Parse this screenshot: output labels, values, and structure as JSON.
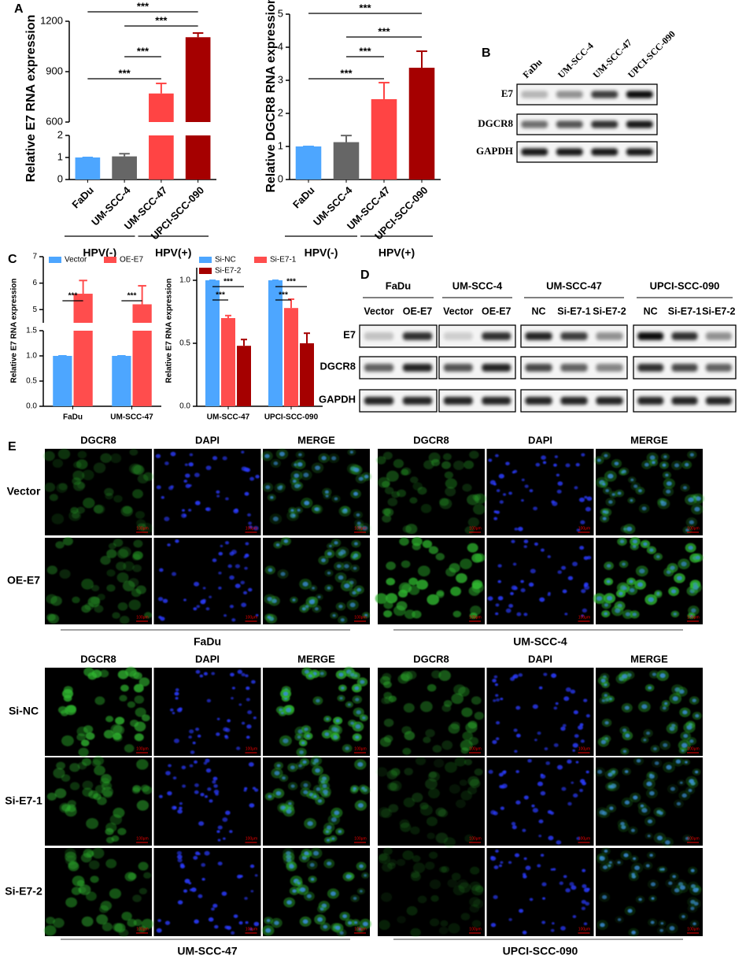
{
  "panel_labels": [
    "A",
    "B",
    "C",
    "D",
    "E"
  ],
  "chart_data": [
    {
      "type": "bar",
      "ylabel": "Relative E7 RNA expression",
      "categories": [
        "FaDu",
        "UM-SCC-4",
        "UM-SCC-47",
        "UPCI-SCC-090"
      ],
      "values": [
        1,
        1.05,
        770,
        1105
      ],
      "errors": [
        0,
        0.12,
        60,
        25
      ],
      "colors": [
        "#4da6ff",
        "#666666",
        "#ff4444",
        "#a50000"
      ],
      "segments": [
        {
          "ylim": [
            0,
            2
          ],
          "yticks": [
            0,
            1,
            2
          ]
        },
        {
          "ylim": [
            600,
            1200
          ],
          "yticks": [
            600,
            900,
            1200
          ]
        }
      ],
      "significance": [
        {
          "label": "***",
          "between": [
            0,
            2
          ]
        },
        {
          "label": "***",
          "between": [
            1,
            2
          ]
        },
        {
          "label": "***",
          "between": [
            1,
            3
          ]
        },
        {
          "label": "***",
          "between": [
            0,
            3
          ]
        }
      ],
      "groups": [
        {
          "label": "HPV(-)",
          "span": [
            0,
            1
          ]
        },
        {
          "label": "HPV(+)",
          "span": [
            2,
            3
          ]
        }
      ]
    },
    {
      "type": "bar",
      "ylabel": "Relative DGCR8 RNA expression",
      "categories": [
        "FaDu",
        "UM-SCC-4",
        "UM-SCC-47",
        "UPCI-SCC-090"
      ],
      "values": [
        1,
        1.13,
        2.43,
        3.38
      ],
      "errors": [
        0,
        0.2,
        0.5,
        0.5
      ],
      "colors": [
        "#4da6ff",
        "#666666",
        "#ff4444",
        "#a50000"
      ],
      "ylim": [
        0,
        5
      ],
      "yticks": [
        0,
        1,
        2,
        3,
        4,
        5
      ],
      "significance": [
        {
          "label": "***",
          "between": [
            0,
            2
          ]
        },
        {
          "label": "***",
          "between": [
            1,
            2
          ]
        },
        {
          "label": "***",
          "between": [
            1,
            3
          ]
        },
        {
          "label": "***",
          "between": [
            0,
            3
          ]
        }
      ],
      "groups": [
        {
          "label": "HPV(-)",
          "span": [
            0,
            1
          ]
        },
        {
          "label": "HPV(+)",
          "span": [
            2,
            3
          ]
        }
      ]
    },
    {
      "type": "bar",
      "ylabel": "Relative E7 RNA expression",
      "categories": [
        "FaDu",
        "UM-SCC-47"
      ],
      "series": [
        {
          "name": "Vector",
          "color": "#4da6ff",
          "values": [
            1,
            1
          ],
          "errors": [
            0,
            0
          ]
        },
        {
          "name": "OE-E7",
          "color": "#ff4d4d",
          "values": [
            5.6,
            5.2
          ],
          "errors": [
            0.5,
            0.7
          ]
        }
      ],
      "segments": [
        {
          "ylim": [
            0,
            1.5
          ],
          "yticks": [
            {
              "value": 0,
              "label": "0.0"
            },
            0.5,
            {
              "value": 1,
              "label": "1.0"
            },
            1.5
          ]
        },
        {
          "ylim": [
            4.5,
            7
          ],
          "yticks": [
            5,
            6,
            7
          ]
        }
      ],
      "significance": [
        {
          "label": "***",
          "category": 0,
          "between": [
            0,
            1
          ]
        },
        {
          "label": "***",
          "category": 1,
          "between": [
            0,
            1
          ]
        }
      ]
    },
    {
      "type": "bar",
      "ylabel": "Relative E7 RNA expression",
      "categories": [
        "UM-SCC-47",
        "UPCI-SCC-090"
      ],
      "series": [
        {
          "name": "Si-NC",
          "color": "#4da6ff",
          "values": [
            1,
            1
          ],
          "errors": [
            0,
            0
          ]
        },
        {
          "name": "Si-E7-1",
          "color": "#ff4d4d",
          "values": [
            0.7,
            0.78
          ],
          "errors": [
            0.02,
            0.07
          ]
        },
        {
          "name": "Si-E7-2",
          "color": "#a50000",
          "values": [
            0.48,
            0.5
          ],
          "errors": [
            0.05,
            0.08
          ]
        }
      ],
      "ylim": [
        0,
        1.1
      ],
      "yticks": [
        {
          "value": 0,
          "label": "0.0"
        },
        0.5,
        {
          "value": 1,
          "label": "1.0"
        }
      ],
      "significance": [
        {
          "label": "***",
          "category": 0,
          "between": [
            0,
            1
          ]
        },
        {
          "label": "***",
          "category": 1,
          "between": [
            0,
            1
          ]
        },
        {
          "label": "***",
          "category": 0,
          "between": [
            0,
            2
          ]
        },
        {
          "label": "***",
          "category": 1,
          "between": [
            0,
            2
          ]
        }
      ]
    }
  ],
  "blot_b": {
    "lanes": [
      "FaDu",
      "UM-SCC-4",
      "UM-SCC-47",
      "UPCI-SCC-090"
    ],
    "rows": [
      "E7",
      "DGCR8",
      "GAPDH"
    ]
  },
  "blot_d": {
    "rows": [
      "E7",
      "DGCR8",
      "GAPDH"
    ],
    "groups": [
      {
        "title": "FaDu",
        "lanes": [
          "Vector",
          "OE-E7"
        ]
      },
      {
        "title": "UM-SCC-4",
        "lanes": [
          "Vector",
          "OE-E7"
        ]
      },
      {
        "title": "UM-SCC-47",
        "lanes": [
          "NC",
          "Si-E7-1",
          "Si-E7-2"
        ]
      },
      {
        "title": "UPCI-SCC-090",
        "lanes": [
          "NC",
          "Si-E7-1",
          "Si-E7-2"
        ]
      }
    ]
  },
  "if_e": {
    "scale_bar": "100μm",
    "blocks": [
      {
        "columns": [
          "DGCR8",
          "DAPI",
          "MERGE"
        ],
        "rows": [
          "Vector",
          "OE-E7"
        ],
        "cell_lines": [
          "FaDu",
          "UM-SCC-4"
        ]
      },
      {
        "columns": [
          "DGCR8",
          "DAPI",
          "MERGE"
        ],
        "rows": [
          "Si-NC",
          "Si-E7-1",
          "Si-E7-2"
        ],
        "cell_lines": [
          "UM-SCC-47",
          "UPCI-SCC-090"
        ]
      }
    ]
  }
}
